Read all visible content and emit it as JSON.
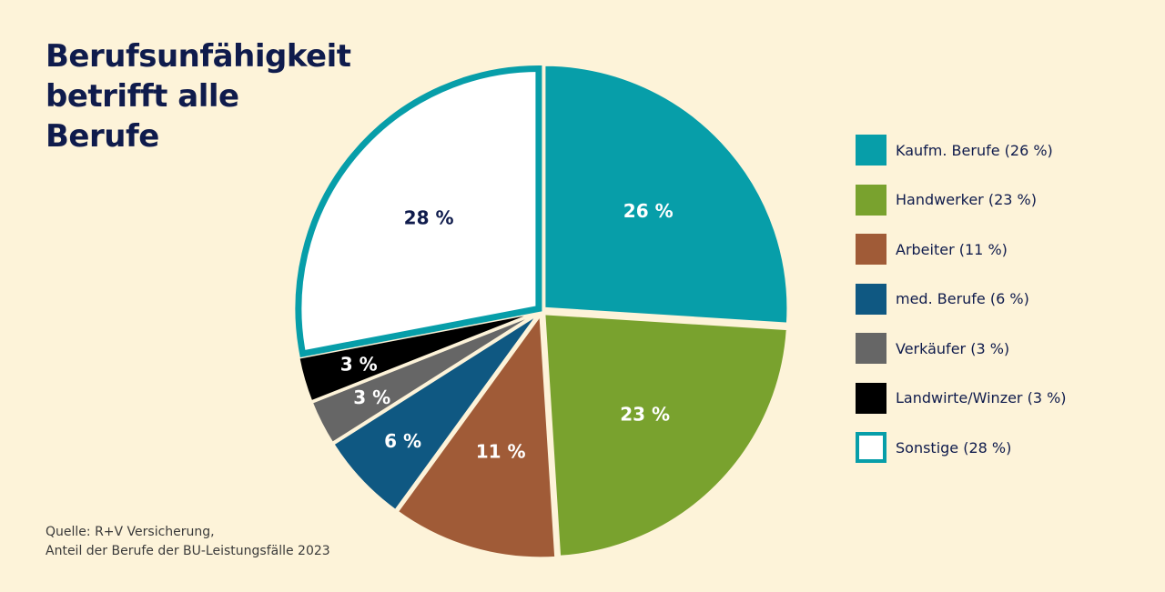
{
  "title_lines": [
    "Berufsunfähigkeit",
    "betrifft alle",
    "Berufe"
  ],
  "source_lines": [
    "Quelle: R+V Versicherung,",
    "Anteil der Berufe der BU-Leistungsfälle 2023"
  ],
  "chart_data": {
    "type": "pie",
    "start": "12 o'clock",
    "direction": "clockwise",
    "legend_position": "right",
    "slices": [
      {
        "name": "Kaufm. Berufe",
        "value": 26,
        "label": "26 %",
        "legend": "Kaufm. Berufe (26 %)",
        "color": "#079ea9",
        "label_color": "#ffffff"
      },
      {
        "name": "Handwerker",
        "value": 23,
        "label": "23 %",
        "legend": "Handwerker (23 %)",
        "color": "#79a22e",
        "label_color": "#ffffff"
      },
      {
        "name": "Arbeiter",
        "value": 11,
        "label": "11 %",
        "legend": "Arbeiter (11 %)",
        "color": "#a05b37",
        "label_color": "#ffffff"
      },
      {
        "name": "med. Berufe",
        "value": 6,
        "label": "6 %",
        "legend": "med. Berufe (6 %)",
        "color": "#0f5882",
        "label_color": "#ffffff"
      },
      {
        "name": "Verkäufer",
        "value": 3,
        "label": "3 %",
        "legend": "Verkäufer (3 %)",
        "color": "#666666",
        "label_color": "#ffffff"
      },
      {
        "name": "Landwirte/Winzer",
        "value": 3,
        "label": "3 %",
        "legend": "Landwirte/Winzer (3 %)",
        "color": "#000000",
        "label_color": "#ffffff"
      },
      {
        "name": "Sonstige",
        "value": 28,
        "label": "28 %",
        "legend": "Sonstige (28 %)",
        "color": "#ffffff",
        "outline": "#079ea9",
        "label_color": "#0f1b4c"
      }
    ]
  }
}
